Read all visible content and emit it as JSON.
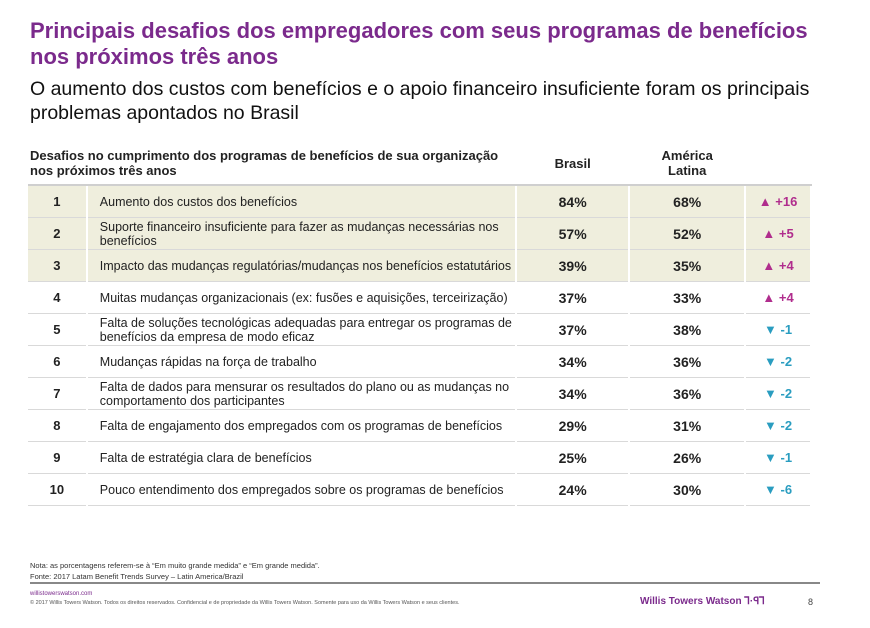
{
  "title": "Principais desafios dos empregadores com seus programas de benefícios nos próximos três anos",
  "subtitle": "O aumento dos custos com benefícios e o apoio financeiro insuficiente foram os principais problemas apontados no Brasil",
  "table": {
    "headers": {
      "question": "Desafios no cumprimento dos programas de benefícios de sua organização nos próximos três anos",
      "brasil": "Brasil",
      "latam": "América Latina",
      "diff": ""
    },
    "rows": [
      {
        "rank": "1",
        "text": "Aumento dos custos dos benefícios",
        "brasil": "84%",
        "latam": "68%",
        "arrow": "▲",
        "diff": "+16",
        "trend": "up",
        "highlight": true
      },
      {
        "rank": "2",
        "text": "Suporte financeiro insuficiente para fazer as mudanças necessárias nos benefícios",
        "brasil": "57%",
        "latam": "52%",
        "arrow": "▲",
        "diff": "+5",
        "trend": "up",
        "highlight": true
      },
      {
        "rank": "3",
        "text": "Impacto das mudanças regulatórias/mudanças nos benefícios estatutários",
        "brasil": "39%",
        "latam": "35%",
        "arrow": "▲",
        "diff": "+4",
        "trend": "up",
        "highlight": true
      },
      {
        "rank": "4",
        "text": "Muitas mudanças organizacionais (ex: fusões e aquisições, terceirização)",
        "brasil": "37%",
        "latam": "33%",
        "arrow": "▲",
        "diff": "+4",
        "trend": "up",
        "highlight": false
      },
      {
        "rank": "5",
        "text": "Falta de soluções tecnológicas adequadas para entregar os programas de benefícios da empresa de modo eficaz",
        "brasil": "37%",
        "latam": "38%",
        "arrow": "▼",
        "diff": "-1",
        "trend": "down",
        "highlight": false
      },
      {
        "rank": "6",
        "text": "Mudanças rápidas na força de trabalho",
        "brasil": "34%",
        "latam": "36%",
        "arrow": "▼",
        "diff": "-2",
        "trend": "down",
        "highlight": false
      },
      {
        "rank": "7",
        "text": "Falta de dados para mensurar os resultados do plano ou as mudanças no comportamento dos participantes",
        "brasil": "34%",
        "latam": "36%",
        "arrow": "▼",
        "diff": "-2",
        "trend": "down",
        "highlight": false
      },
      {
        "rank": "8",
        "text": "Falta de engajamento dos empregados com os programas de benefícios",
        "brasil": "29%",
        "latam": "31%",
        "arrow": "▼",
        "diff": "-2",
        "trend": "down",
        "highlight": false
      },
      {
        "rank": "9",
        "text": "Falta de estratégia clara de benefícios",
        "brasil": "25%",
        "latam": "26%",
        "arrow": "▼",
        "diff": "-1",
        "trend": "down",
        "highlight": false
      },
      {
        "rank": "10",
        "text": "Pouco entendimento dos empregados sobre os programas de benefícios",
        "brasil": "24%",
        "latam": "30%",
        "arrow": "▼",
        "diff": "-6",
        "trend": "down",
        "highlight": false
      }
    ]
  },
  "colors": {
    "title": "#7b2a8c",
    "up": "#b02d8d",
    "down": "#2a9dc0",
    "highlight_row": "#efeedd"
  },
  "footer": {
    "note": "Nota: as porcentagens referem-se à “Em muito grande medida” e “Em grande medida”.",
    "source": "Fonte: 2017 Latam Benefit Trends Survey – Latin America/Brazil",
    "url": "willistowerswatson.com",
    "copyright": "© 2017 Willis Towers Watson. Todos os direitos reservados. Confidencial e de propriedade da Willis Towers Watson. Somente para uso da Willis Towers Watson e seus clientes.",
    "logo": "Willis Towers Watson ꓶ·ꟼꓶ",
    "page": "8"
  }
}
